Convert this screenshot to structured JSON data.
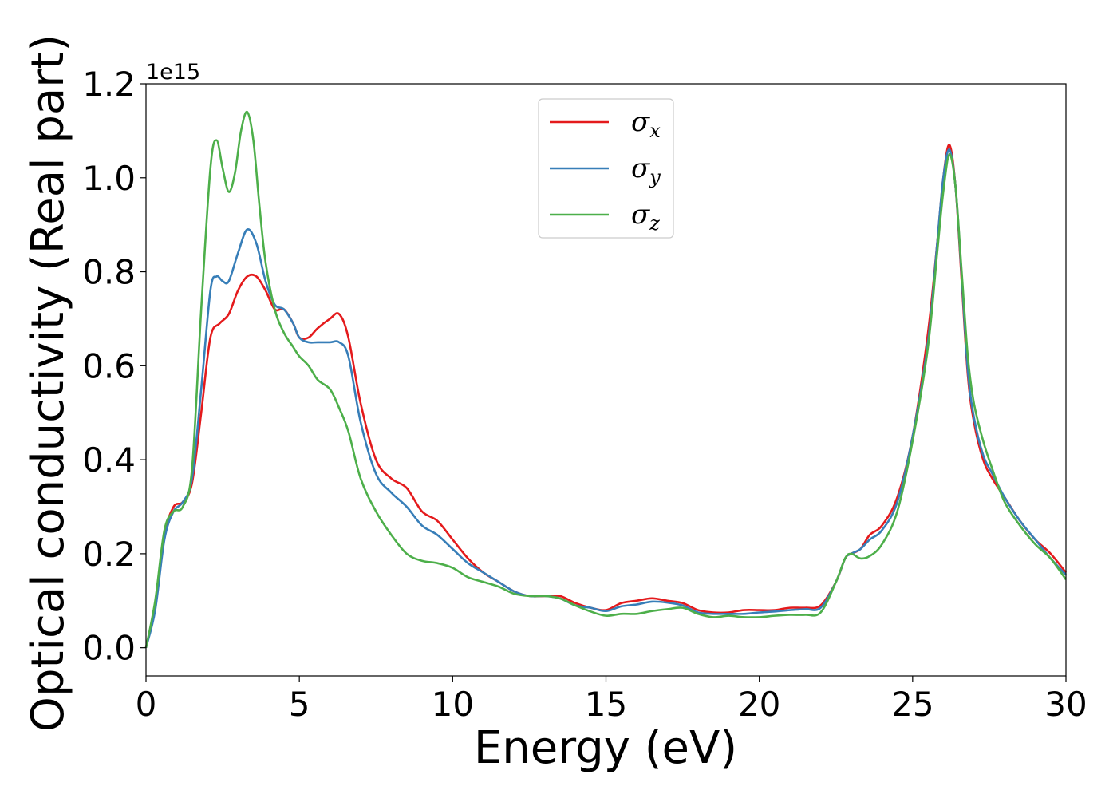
{
  "chart_data": {
    "type": "line",
    "title": "",
    "xlabel": "Energy (eV)",
    "ylabel": "Optical conductivity (Real part)",
    "y_offset_label": "1e15",
    "xlim": [
      0,
      30
    ],
    "ylim": [
      -0.06,
      1.2
    ],
    "x_ticks": [
      0,
      5,
      10,
      15,
      20,
      25,
      30
    ],
    "x_tick_labels": [
      "0",
      "5",
      "10",
      "15",
      "20",
      "25",
      "30"
    ],
    "y_ticks": [
      0.0,
      0.2,
      0.4,
      0.6,
      0.8,
      1.0,
      1.2
    ],
    "y_tick_labels": [
      "0.0",
      "0.2",
      "0.4",
      "0.6",
      "0.8",
      "1.0",
      "1.2"
    ],
    "grid": false,
    "legend_position": "top-center",
    "series": [
      {
        "name": "σ_x",
        "symbol": "σ",
        "subscript": "x",
        "color": "#e41a1c",
        "x": [
          0,
          0.3,
          0.6,
          0.9,
          1.2,
          1.5,
          1.8,
          2.1,
          2.4,
          2.7,
          3.0,
          3.3,
          3.6,
          3.9,
          4.2,
          4.5,
          4.8,
          5.0,
          5.3,
          5.6,
          6.0,
          6.3,
          6.6,
          7.0,
          7.5,
          8.0,
          8.5,
          9.0,
          9.5,
          10.0,
          10.5,
          11.0,
          11.5,
          12.0,
          12.5,
          13.0,
          13.5,
          14.0,
          14.5,
          15.0,
          15.5,
          16.0,
          16.5,
          17.0,
          17.5,
          18.0,
          18.5,
          19.0,
          19.5,
          20.0,
          20.5,
          21.0,
          21.5,
          22.0,
          22.5,
          22.8,
          23.0,
          23.3,
          23.6,
          24.0,
          24.5,
          25.0,
          25.5,
          25.8,
          26.0,
          26.2,
          26.4,
          26.6,
          26.8,
          27.0,
          27.3,
          27.6,
          28.0,
          28.5,
          29.0,
          29.5,
          30.0
        ],
        "y": [
          0.0,
          0.09,
          0.24,
          0.3,
          0.31,
          0.35,
          0.5,
          0.66,
          0.69,
          0.71,
          0.76,
          0.79,
          0.79,
          0.76,
          0.72,
          0.72,
          0.69,
          0.66,
          0.66,
          0.68,
          0.7,
          0.71,
          0.66,
          0.52,
          0.4,
          0.36,
          0.34,
          0.29,
          0.27,
          0.23,
          0.19,
          0.16,
          0.14,
          0.12,
          0.11,
          0.11,
          0.11,
          0.095,
          0.085,
          0.08,
          0.095,
          0.1,
          0.105,
          0.1,
          0.095,
          0.08,
          0.075,
          0.075,
          0.08,
          0.08,
          0.08,
          0.085,
          0.085,
          0.09,
          0.14,
          0.19,
          0.2,
          0.21,
          0.24,
          0.26,
          0.32,
          0.45,
          0.67,
          0.86,
          1.0,
          1.07,
          0.98,
          0.78,
          0.58,
          0.48,
          0.4,
          0.36,
          0.32,
          0.27,
          0.23,
          0.2,
          0.16
        ]
      },
      {
        "name": "σ_y",
        "symbol": "σ",
        "subscript": "y",
        "color": "#377eb8",
        "x": [
          0,
          0.3,
          0.6,
          0.9,
          1.2,
          1.5,
          1.8,
          2.1,
          2.3,
          2.5,
          2.7,
          3.0,
          3.3,
          3.6,
          3.9,
          4.2,
          4.5,
          4.8,
          5.0,
          5.3,
          5.6,
          6.0,
          6.3,
          6.6,
          7.0,
          7.5,
          8.0,
          8.5,
          9.0,
          9.5,
          10.0,
          10.5,
          11.0,
          11.5,
          12.0,
          12.5,
          13.0,
          13.5,
          14.0,
          14.5,
          15.0,
          15.5,
          16.0,
          16.5,
          17.0,
          17.5,
          18.0,
          18.5,
          19.0,
          19.5,
          20.0,
          20.5,
          21.0,
          21.5,
          22.0,
          22.5,
          22.8,
          23.0,
          23.3,
          23.6,
          24.0,
          24.5,
          25.0,
          25.5,
          25.8,
          26.0,
          26.2,
          26.4,
          26.6,
          26.8,
          27.0,
          27.3,
          27.6,
          28.0,
          28.5,
          29.0,
          29.5,
          30.0
        ],
        "y": [
          0.0,
          0.08,
          0.23,
          0.29,
          0.31,
          0.36,
          0.55,
          0.76,
          0.79,
          0.78,
          0.78,
          0.84,
          0.89,
          0.86,
          0.78,
          0.73,
          0.72,
          0.69,
          0.66,
          0.65,
          0.65,
          0.65,
          0.65,
          0.62,
          0.48,
          0.37,
          0.33,
          0.3,
          0.26,
          0.24,
          0.21,
          0.18,
          0.16,
          0.14,
          0.12,
          0.11,
          0.11,
          0.105,
          0.09,
          0.085,
          0.078,
          0.088,
          0.092,
          0.098,
          0.096,
          0.09,
          0.075,
          0.072,
          0.072,
          0.072,
          0.075,
          0.077,
          0.08,
          0.082,
          0.085,
          0.14,
          0.19,
          0.2,
          0.21,
          0.23,
          0.25,
          0.31,
          0.45,
          0.65,
          0.86,
          1.0,
          1.06,
          0.98,
          0.79,
          0.59,
          0.49,
          0.41,
          0.37,
          0.32,
          0.27,
          0.23,
          0.19,
          0.155
        ]
      },
      {
        "name": "σ_z",
        "symbol": "σ",
        "subscript": "z",
        "color": "#4daf4a",
        "x": [
          0,
          0.3,
          0.6,
          0.9,
          1.2,
          1.5,
          1.8,
          2.1,
          2.3,
          2.5,
          2.7,
          2.9,
          3.1,
          3.3,
          3.5,
          3.7,
          3.9,
          4.2,
          4.5,
          4.8,
          5.0,
          5.3,
          5.6,
          6.0,
          6.3,
          6.6,
          7.0,
          7.5,
          8.0,
          8.5,
          9.0,
          9.5,
          10.0,
          10.5,
          11.0,
          11.5,
          12.0,
          12.5,
          13.0,
          13.5,
          14.0,
          14.5,
          15.0,
          15.5,
          16.0,
          16.5,
          17.0,
          17.5,
          18.0,
          18.5,
          19.0,
          19.5,
          20.0,
          20.5,
          21.0,
          21.5,
          22.0,
          22.5,
          22.8,
          23.0,
          23.3,
          23.6,
          24.0,
          24.5,
          25.0,
          25.5,
          25.8,
          26.0,
          26.2,
          26.4,
          26.6,
          26.8,
          27.0,
          27.3,
          27.6,
          28.0,
          28.5,
          29.0,
          29.5,
          30.0
        ],
        "y": [
          0.0,
          0.1,
          0.25,
          0.29,
          0.3,
          0.38,
          0.72,
          1.02,
          1.08,
          1.02,
          0.97,
          1.01,
          1.1,
          1.14,
          1.08,
          0.94,
          0.82,
          0.72,
          0.67,
          0.64,
          0.62,
          0.6,
          0.57,
          0.55,
          0.51,
          0.46,
          0.36,
          0.29,
          0.24,
          0.2,
          0.185,
          0.18,
          0.17,
          0.15,
          0.14,
          0.13,
          0.115,
          0.11,
          0.11,
          0.105,
          0.09,
          0.077,
          0.068,
          0.072,
          0.072,
          0.078,
          0.082,
          0.085,
          0.072,
          0.065,
          0.068,
          0.065,
          0.065,
          0.068,
          0.07,
          0.07,
          0.075,
          0.14,
          0.19,
          0.2,
          0.19,
          0.195,
          0.22,
          0.29,
          0.44,
          0.64,
          0.84,
          0.97,
          1.05,
          0.98,
          0.8,
          0.62,
          0.52,
          0.44,
          0.38,
          0.31,
          0.26,
          0.22,
          0.19,
          0.145
        ]
      }
    ]
  }
}
